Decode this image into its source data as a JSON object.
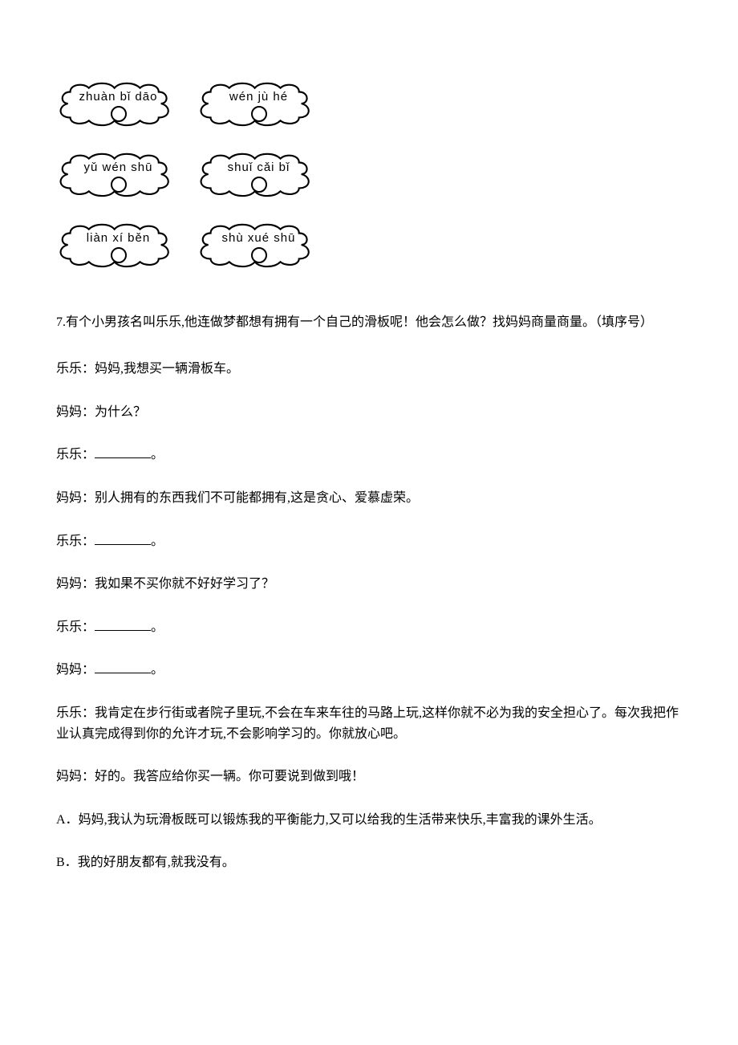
{
  "clouds": {
    "rows": [
      [
        {
          "text": "zhuàn bǐ dāo"
        },
        {
          "text": "wén jù hé"
        }
      ],
      [
        {
          "text": "yǔ wén shū"
        },
        {
          "text": "shuǐ cǎi bǐ"
        }
      ],
      [
        {
          "text": "liàn xí běn"
        },
        {
          "text": "shù xué shū"
        }
      ]
    ]
  },
  "q7": {
    "stem": "7.有个小男孩名叫乐乐,他连做梦都想有拥有一个自己的滑板呢！他会怎么做？找妈妈商量商量。（填序号）",
    "lines": [
      {
        "speaker": "乐乐：",
        "text": "妈妈,我想买一辆滑板车。"
      },
      {
        "speaker": "妈妈：",
        "text": "为什么？"
      },
      {
        "speaker": "乐乐：",
        "blank": true,
        "suffix": "。"
      },
      {
        "speaker": "妈妈：",
        "text": "别人拥有的东西我们不可能都拥有,这是贪心、爱慕虚荣。"
      },
      {
        "speaker": "乐乐：",
        "blank": true,
        "suffix": "。"
      },
      {
        "speaker": "妈妈：",
        "text": "我如果不买你就不好好学习了？"
      },
      {
        "speaker": "乐乐：",
        "blank": true,
        "suffix": "。"
      },
      {
        "speaker": "妈妈：",
        "blank": true,
        "suffix": "。"
      },
      {
        "speaker": "乐乐：",
        "text": "我肯定在步行街或者院子里玩,不会在车来车往的马路上玩,这样你就不必为我的安全担心了。每次我把作业认真完成得到你的允许才玩,不会影响学习的。你就放心吧。"
      },
      {
        "speaker": "妈妈：",
        "text": "好的。我答应给你买一辆。你可要说到做到哦！"
      }
    ],
    "options": [
      {
        "label": "A．",
        "text": "妈妈,我认为玩滑板既可以锻炼我的平衡能力,又可以给我的生活带来快乐,丰富我的课外生活。"
      },
      {
        "label": "B．",
        "text": "我的好朋友都有,就我没有。"
      }
    ]
  }
}
